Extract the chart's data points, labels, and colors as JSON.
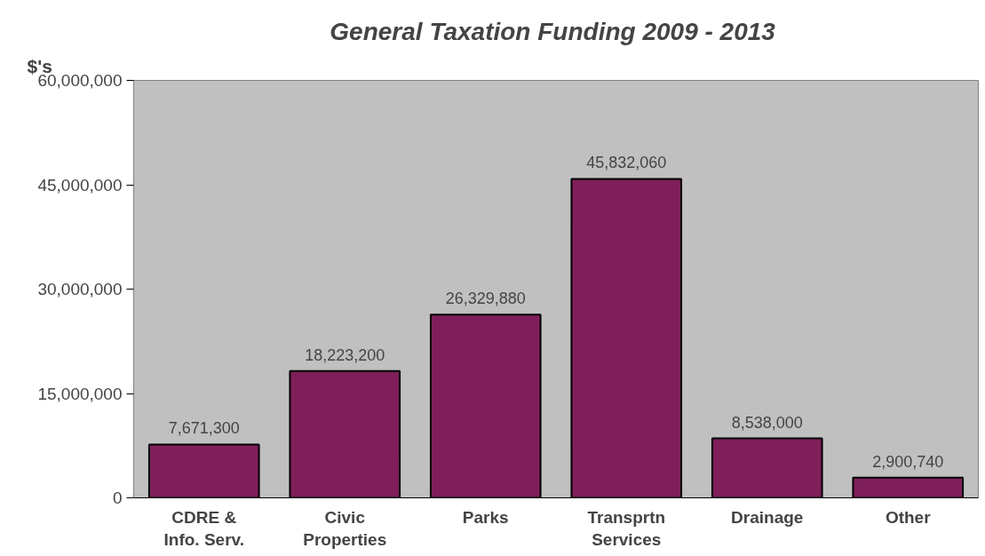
{
  "chart_data": {
    "type": "bar",
    "title": "General Taxation Funding  2009 - 2013",
    "ylabel": "$'s",
    "categories": [
      "CDRE &\nInfo. Serv.",
      "Civic\nProperties",
      "Parks",
      "Transprtn\nServices",
      "Drainage",
      "Other"
    ],
    "values": [
      7671300,
      18223200,
      26329880,
      45832060,
      8538000,
      2900740
    ],
    "color": "#7f1f5a",
    "ylim": [
      0,
      60000000
    ],
    "yticks": [
      {
        "value": 0,
        "label": "0"
      },
      {
        "value": 15000000,
        "label": "15,000,000"
      },
      {
        "value": 30000000,
        "label": "30,000,000"
      },
      {
        "value": 45000000,
        "label": "45,000,000"
      },
      {
        "value": 60000000,
        "label": "60,000,000"
      }
    ],
    "value_labels": [
      "7,671,300",
      "18,223,200",
      "26,329,880",
      "45,832,060",
      "8,538,000",
      "2,900,740"
    ],
    "grid": false
  }
}
